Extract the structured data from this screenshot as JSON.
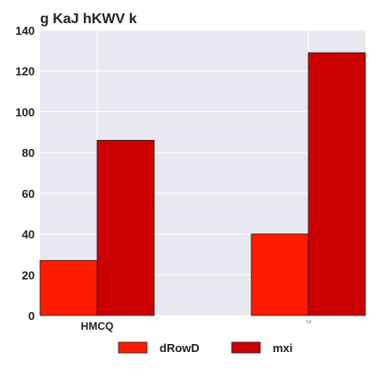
{
  "chart_data": {
    "type": "bar",
    "title": "g KaJ hKWV k",
    "xlabel": "",
    "ylabel": "",
    "categories": [
      "HMCQ",
      "ᵀᵒᶠ"
    ],
    "series": [
      {
        "name": "dRowD",
        "values": [
          27,
          40
        ],
        "color": "#ff1a00"
      },
      {
        "name": "mxi",
        "values": [
          86,
          129
        ],
        "color": "#cc0000"
      }
    ],
    "ylim": [
      0,
      140
    ],
    "yticks": [
      0,
      20,
      40,
      60,
      80,
      100,
      120,
      140
    ],
    "grid": true,
    "legend": "bottom-center",
    "plot_background": "#e8e8f0",
    "grid_color": "#ffffff",
    "edge_color": "#222222"
  }
}
